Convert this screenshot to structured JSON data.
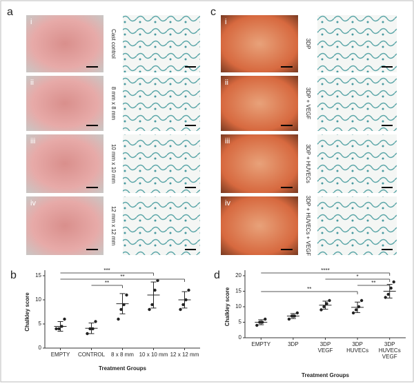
{
  "panel_a": {
    "label": "a",
    "rows": [
      {
        "numeral": "i",
        "treatment": "Cast control"
      },
      {
        "numeral": "ii",
        "treatment": "8 mm x 8 mm"
      },
      {
        "numeral": "iii",
        "treatment": "10 mm x 10 mm"
      },
      {
        "numeral": "iv",
        "treatment": "12 mm x 12 mm"
      }
    ]
  },
  "panel_c": {
    "label": "c",
    "rows": [
      {
        "numeral": "i",
        "treatment": "3DP"
      },
      {
        "numeral": "ii",
        "treatment": "3DP + VEGF"
      },
      {
        "numeral": "iii",
        "treatment": "3DP + HUVECs"
      },
      {
        "numeral": "iv",
        "treatment": "3DP + HUVECs + VEGF"
      }
    ]
  },
  "chart_data": [
    {
      "type": "dot",
      "panel": "b",
      "ylabel": "Chalkley score",
      "xlabel": "Treatment Groups",
      "categories": [
        [
          "EMPTY"
        ],
        [
          "CONTROL"
        ],
        [
          "8 x 8 mm"
        ],
        [
          "10 x 10 mm"
        ],
        [
          "12 x 12 mm"
        ]
      ],
      "points": [
        [
          4,
          4,
          4.5,
          6
        ],
        [
          3,
          4,
          4,
          5.5
        ],
        [
          6,
          8,
          9,
          11
        ],
        [
          8,
          9,
          12,
          14
        ],
        [
          8,
          9,
          10,
          12
        ]
      ],
      "mean": [
        4.5,
        4.1,
        9.2,
        11,
        10
      ],
      "sd": [
        1,
        1.1,
        2.1,
        2.7,
        1.7
      ],
      "ylim": [
        0,
        15
      ],
      "yticks": [
        0,
        5,
        10,
        15
      ],
      "brackets": [
        {
          "from": 0,
          "to": 3,
          "label": "***"
        },
        {
          "from": 0,
          "to": 4,
          "label": "**"
        },
        {
          "from": 1,
          "to": 2,
          "label": "**"
        }
      ]
    },
    {
      "type": "dot",
      "panel": "d",
      "ylabel": "Chalkley score",
      "xlabel": "Treatment Groups",
      "categories": [
        [
          "EMPTY"
        ],
        [
          "3DP"
        ],
        [
          "3DP",
          "VEGF"
        ],
        [
          "3DP",
          "HUVECs"
        ],
        [
          "3DP",
          "HUVECs",
          "VEGF"
        ]
      ],
      "points": [
        [
          4,
          5,
          5,
          6
        ],
        [
          6,
          7,
          7,
          8
        ],
        [
          9,
          10,
          11,
          12
        ],
        [
          8,
          9,
          10,
          12
        ],
        [
          13,
          14,
          16,
          18
        ]
      ],
      "mean": [
        5,
        7,
        10.5,
        9.8,
        15
      ],
      "sd": [
        0.8,
        0.8,
        1.3,
        1.7,
        2.2
      ],
      "ylim": [
        0,
        20
      ],
      "yticks": [
        0,
        5,
        10,
        15,
        20
      ],
      "brackets": [
        {
          "from": 0,
          "to": 4,
          "label": "****"
        },
        {
          "from": 2,
          "to": 4,
          "label": "*"
        },
        {
          "from": 3,
          "to": 4,
          "label": "**"
        },
        {
          "from": 0,
          "to": 3,
          "label": "**"
        }
      ]
    }
  ]
}
